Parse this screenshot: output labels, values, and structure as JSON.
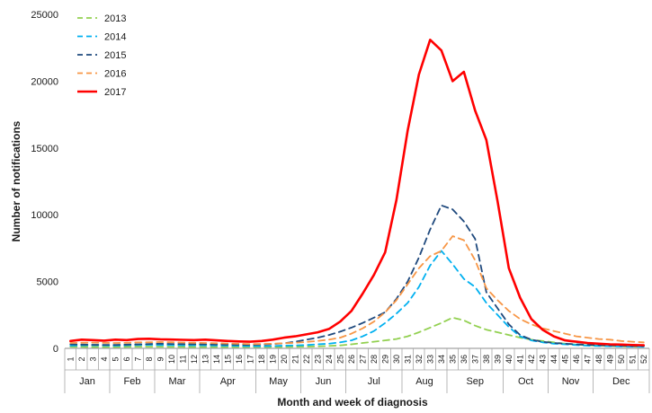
{
  "chart_data": {
    "type": "line",
    "xlabel": "Month and week of diagnosis",
    "ylabel": "Number of notifications",
    "ylim": [
      0,
      25000
    ],
    "yticks": [
      "0",
      "5000",
      "10000",
      "15000",
      "20000",
      "25000"
    ],
    "x": [
      1,
      2,
      3,
      4,
      5,
      6,
      7,
      8,
      9,
      10,
      11,
      12,
      13,
      14,
      15,
      16,
      17,
      18,
      19,
      20,
      21,
      22,
      23,
      24,
      25,
      26,
      27,
      28,
      29,
      30,
      31,
      32,
      33,
      34,
      35,
      36,
      37,
      38,
      39,
      40,
      41,
      42,
      43,
      44,
      45,
      46,
      47,
      48,
      49,
      50,
      51,
      52
    ],
    "week_labels": [
      "1",
      "2",
      "3",
      "4",
      "5",
      "6",
      "7",
      "8",
      "9",
      "10",
      "11",
      "12",
      "13",
      "14",
      "15",
      "16",
      "17",
      "18",
      "19",
      "20",
      "21",
      "22",
      "23",
      "24",
      "25",
      "26",
      "27",
      "28",
      "29",
      "30",
      "31",
      "32",
      "33",
      "34",
      "35",
      "36",
      "37",
      "38",
      "39",
      "40",
      "41",
      "42",
      "43",
      "44",
      "45",
      "46",
      "47",
      "48",
      "49",
      "50",
      "51",
      "52"
    ],
    "months": [
      {
        "label": "Jan",
        "from": 1,
        "to": 4
      },
      {
        "label": "Feb",
        "from": 5,
        "to": 8
      },
      {
        "label": "Mar",
        "from": 9,
        "to": 12
      },
      {
        "label": "Apr",
        "from": 13,
        "to": 17
      },
      {
        "label": "May",
        "from": 18,
        "to": 21
      },
      {
        "label": "Jun",
        "from": 22,
        "to": 25
      },
      {
        "label": "Jul",
        "from": 26,
        "to": 30
      },
      {
        "label": "Aug",
        "from": 31,
        "to": 34
      },
      {
        "label": "Sep",
        "from": 35,
        "to": 39
      },
      {
        "label": "Oct",
        "from": 40,
        "to": 43
      },
      {
        "label": "Nov",
        "from": 44,
        "to": 47
      },
      {
        "label": "Dec",
        "from": 48,
        "to": 52
      }
    ],
    "legend_position": "top-left",
    "grid": false,
    "series": [
      {
        "name": "2013",
        "color": "#92d050",
        "dash": "dashed",
        "width": 1.8,
        "values": [
          120,
          110,
          100,
          100,
          100,
          110,
          120,
          120,
          120,
          110,
          110,
          100,
          100,
          100,
          100,
          100,
          100,
          100,
          100,
          110,
          120,
          130,
          150,
          180,
          220,
          300,
          400,
          500,
          600,
          700,
          900,
          1200,
          1550,
          1900,
          2300,
          2100,
          1700,
          1400,
          1200,
          1000,
          800,
          650,
          550,
          450,
          350,
          280,
          230,
          200,
          180,
          150,
          130,
          120
        ]
      },
      {
        "name": "2014",
        "color": "#00b0f0",
        "dash": "dashed",
        "width": 1.8,
        "values": [
          200,
          220,
          230,
          220,
          200,
          230,
          250,
          260,
          250,
          240,
          230,
          230,
          220,
          210,
          200,
          180,
          170,
          160,
          180,
          200,
          220,
          250,
          300,
          350,
          450,
          600,
          900,
          1300,
          1900,
          2600,
          3400,
          4600,
          6200,
          7300,
          6300,
          5200,
          4600,
          3400,
          2500,
          1600,
          900,
          600,
          450,
          350,
          300,
          250,
          200,
          180,
          160,
          150,
          130,
          120
        ]
      },
      {
        "name": "2015",
        "color": "#1f497d",
        "dash": "dashed",
        "width": 1.8,
        "values": [
          300,
          280,
          270,
          260,
          260,
          280,
          300,
          330,
          350,
          330,
          320,
          310,
          300,
          290,
          280,
          270,
          260,
          280,
          320,
          380,
          500,
          650,
          800,
          1000,
          1250,
          1550,
          1900,
          2300,
          2700,
          3700,
          5000,
          6800,
          8900,
          10700,
          10400,
          9500,
          8200,
          4200,
          3000,
          1800,
          1000,
          650,
          500,
          400,
          350,
          300,
          270,
          240,
          220,
          200,
          180,
          170
        ]
      },
      {
        "name": "2016",
        "color": "#f79646",
        "dash": "dashed",
        "width": 1.8,
        "values": [
          400,
          420,
          430,
          410,
          400,
          420,
          450,
          460,
          480,
          460,
          440,
          420,
          400,
          380,
          360,
          340,
          320,
          330,
          350,
          380,
          420,
          480,
          560,
          650,
          800,
          1100,
          1500,
          2000,
          2700,
          3600,
          4800,
          6000,
          6900,
          7300,
          8400,
          8100,
          6600,
          4500,
          3600,
          2800,
          2200,
          1800,
          1500,
          1300,
          1100,
          900,
          800,
          700,
          650,
          550,
          500,
          450
        ]
      },
      {
        "name": "2017",
        "color": "#ff0000",
        "dash": "solid",
        "width": 2.6,
        "values": [
          550,
          650,
          620,
          580,
          650,
          620,
          700,
          720,
          680,
          660,
          640,
          620,
          650,
          600,
          550,
          520,
          500,
          550,
          650,
          800,
          900,
          1050,
          1200,
          1450,
          2000,
          2800,
          4100,
          5500,
          7200,
          11100,
          16300,
          20500,
          23100,
          22300,
          20000,
          20700,
          17800,
          15600,
          11000,
          6000,
          3800,
          2200,
          1400,
          900,
          600,
          500,
          400,
          350,
          300,
          280,
          250,
          230
        ]
      }
    ]
  }
}
